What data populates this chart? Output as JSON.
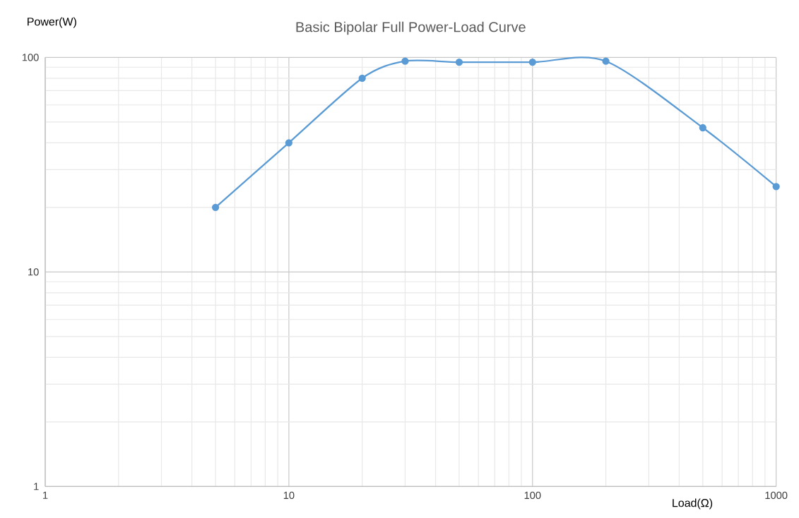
{
  "chart_data": {
    "type": "line",
    "title": "Basic Bipolar Full Power-Load Curve",
    "xlabel": "Load(Ω)",
    "ylabel": "Power(W)",
    "x": [
      5,
      10,
      20,
      30,
      50,
      100,
      200,
      500,
      1000
    ],
    "series": [
      {
        "color": "#5b9bd5",
        "values": [
          20,
          40,
          80,
          96,
          95,
          95,
          96,
          47,
          25
        ]
      }
    ],
    "xlim": [
      1,
      1000
    ],
    "ylim": [
      1,
      100
    ],
    "xticks": [
      1,
      10,
      100,
      1000
    ],
    "yticks": [
      1,
      10,
      100
    ],
    "log": "xy",
    "grid": true,
    "marker": "circle",
    "line_style": "solid"
  }
}
